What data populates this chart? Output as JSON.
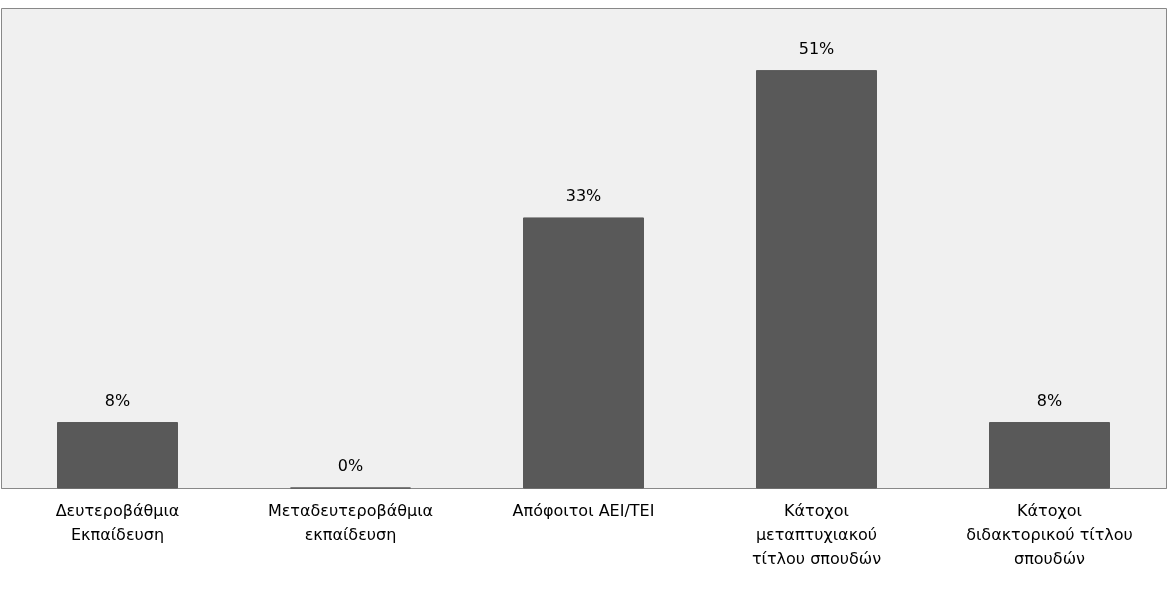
{
  "chart_data": {
    "type": "bar",
    "categories": [
      "Δευτεροβάθμια\nΕκπαίδευση",
      "Μεταδευτεροβάθμια\nεκπαίδευση",
      "Απόφοιτοι ΑΕΙ/ΤΕΙ",
      "Κάτοχοι\nμεταπτυχιακού\nτίτλου σπουδών",
      "Κάτοχοι\nδιδακτορικού τίτλου\nσπουδών"
    ],
    "values": [
      8,
      0,
      33,
      51,
      8
    ],
    "value_labels": [
      "8%",
      "0%",
      "33%",
      "51%",
      "8%"
    ],
    "color": "#595959",
    "grid": false
  }
}
